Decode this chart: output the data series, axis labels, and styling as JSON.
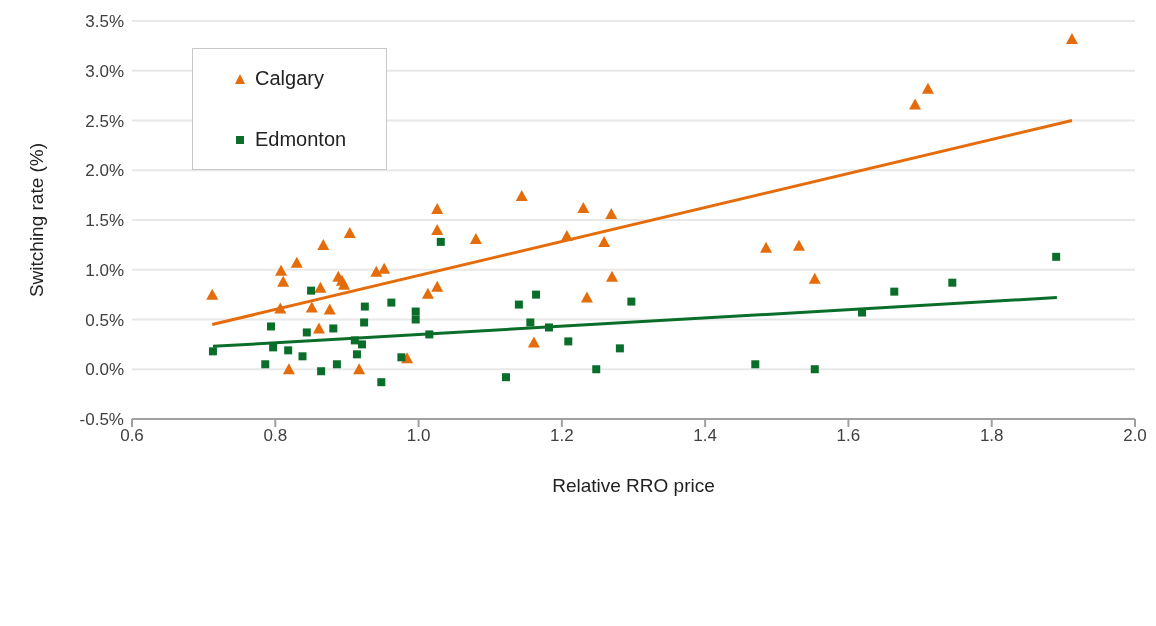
{
  "chart_data": {
    "type": "scatter",
    "xlabel": "Relative RRO price",
    "ylabel": "Switching rate (%)",
    "xlim": [
      0.6,
      2.0
    ],
    "xticks": [
      {
        "value": 0.6,
        "label": "0.6"
      },
      {
        "value": 0.8,
        "label": "0.8"
      },
      {
        "value": 1.0,
        "label": "1.0"
      },
      {
        "value": 1.2,
        "label": "1.2"
      },
      {
        "value": 1.4,
        "label": "1.4"
      },
      {
        "value": 1.6,
        "label": "1.6"
      },
      {
        "value": 1.8,
        "label": "1.8"
      },
      {
        "value": 2.0,
        "label": "2.0"
      }
    ],
    "ylim": [
      -0.5,
      3.5
    ],
    "yticks": [
      {
        "value": -0.5,
        "label": "-0.5%"
      },
      {
        "value": 0,
        "label": "0.0%"
      },
      {
        "value": 0.5,
        "label": "0.5%"
      },
      {
        "value": 1.0,
        "label": "1.0%"
      },
      {
        "value": 1.5,
        "label": "1.5%"
      },
      {
        "value": 2.0,
        "label": "2.0%"
      },
      {
        "value": 2.5,
        "label": "2.5%"
      },
      {
        "value": 3.0,
        "label": "3.0%"
      },
      {
        "value": 3.5,
        "label": "3.5%"
      }
    ],
    "grid": "y",
    "legend": "top left",
    "series": [
      {
        "name": "Calgary",
        "marker": "triangle",
        "color": "#e46c0a",
        "x": [
          0.712,
          0.807,
          0.808,
          0.811,
          0.819,
          0.83,
          0.851,
          0.861,
          0.863,
          0.867,
          0.876,
          0.888,
          0.893,
          0.896,
          0.904,
          0.917,
          0.941,
          0.952,
          0.984,
          1.013,
          1.026,
          1.026,
          1.026,
          1.08,
          1.144,
          1.161,
          1.207,
          1.23,
          1.235,
          1.259,
          1.269,
          1.27,
          1.485,
          1.531,
          1.553,
          1.693,
          1.711,
          1.912
        ],
        "values": [
          0.75,
          0.61,
          0.99,
          0.88,
          0.0,
          1.07,
          0.62,
          0.41,
          0.82,
          1.25,
          0.6,
          0.93,
          0.89,
          0.85,
          1.37,
          0.0,
          0.98,
          1.01,
          0.11,
          0.76,
          1.61,
          1.4,
          0.83,
          1.31,
          1.74,
          0.27,
          1.34,
          1.62,
          0.72,
          1.28,
          1.56,
          0.93,
          1.22,
          1.24,
          0.91,
          2.66,
          2.82,
          3.32
        ]
      },
      {
        "name": "Edmonton",
        "marker": "square",
        "color": "#0a6e2a",
        "x": [
          0.713,
          0.786,
          0.794,
          0.797,
          0.818,
          0.838,
          0.844,
          0.85,
          0.864,
          0.881,
          0.886,
          0.911,
          0.914,
          0.921,
          0.924,
          0.925,
          0.948,
          0.962,
          0.976,
          0.996,
          0.996,
          1.015,
          1.031,
          1.122,
          1.14,
          1.156,
          1.164,
          1.182,
          1.209,
          1.248,
          1.281,
          1.297,
          1.47,
          1.553,
          1.619,
          1.664,
          1.745,
          1.89
        ],
        "values": [
          0.18,
          0.05,
          0.43,
          0.22,
          0.19,
          0.13,
          0.37,
          0.79,
          -0.02,
          0.41,
          0.05,
          0.29,
          0.15,
          0.25,
          0.47,
          0.63,
          -0.13,
          0.67,
          0.12,
          0.58,
          0.5,
          0.35,
          1.28,
          -0.08,
          0.65,
          0.47,
          0.75,
          0.42,
          0.28,
          0.0,
          0.21,
          0.68,
          0.05,
          0.0,
          0.57,
          0.78,
          0.87,
          1.13
        ]
      },
      {
        "type": "line",
        "marker": "none",
        "color": "#e46c0a",
        "x": [
          0.712,
          1.912
        ],
        "values": [
          0.45,
          2.5
        ]
      },
      {
        "type": "line",
        "marker": "none",
        "color": "#0a6e2a",
        "x": [
          0.713,
          1.891
        ],
        "values": [
          0.23,
          0.72
        ]
      }
    ]
  }
}
